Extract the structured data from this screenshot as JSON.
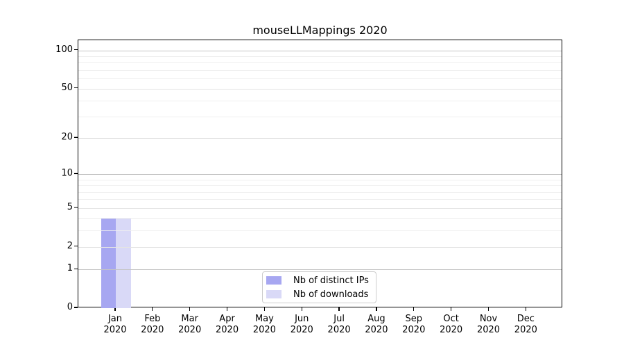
{
  "chart_data": {
    "type": "bar",
    "title": "mouseLLMappings 2020",
    "x_axis": {
      "months": [
        "Jan",
        "Feb",
        "Mar",
        "Apr",
        "May",
        "Jun",
        "Jul",
        "Aug",
        "Sep",
        "Oct",
        "Nov",
        "Dec"
      ],
      "year": "2020"
    },
    "y_axis": {
      "scale": "log1p",
      "max": 120,
      "ticks": [
        0,
        1,
        2,
        5,
        10,
        20,
        50,
        100
      ],
      "minor_gridlines": [
        3,
        4,
        6,
        7,
        8,
        9,
        30,
        40,
        60,
        70,
        80,
        90
      ]
    },
    "series": [
      {
        "name": "Nb of distinct IPs",
        "color": "#a7a7f1",
        "values": [
          4,
          0,
          0,
          0,
          0,
          0,
          0,
          0,
          0,
          0,
          0,
          0
        ]
      },
      {
        "name": "Nb of downloads",
        "color": "#d9d9f7",
        "values": [
          4,
          0,
          0,
          0,
          0,
          0,
          0,
          0,
          0,
          0,
          0,
          0
        ]
      }
    ],
    "grid": {
      "minor_color": "#efefef",
      "labeled_color": "#e4e4e4",
      "power10_color": "#c4c4c4",
      "grid_on_top": true
    },
    "legend": {
      "position": "lower center"
    },
    "colors": {
      "axis": "#000000",
      "background": "#ffffff"
    }
  }
}
